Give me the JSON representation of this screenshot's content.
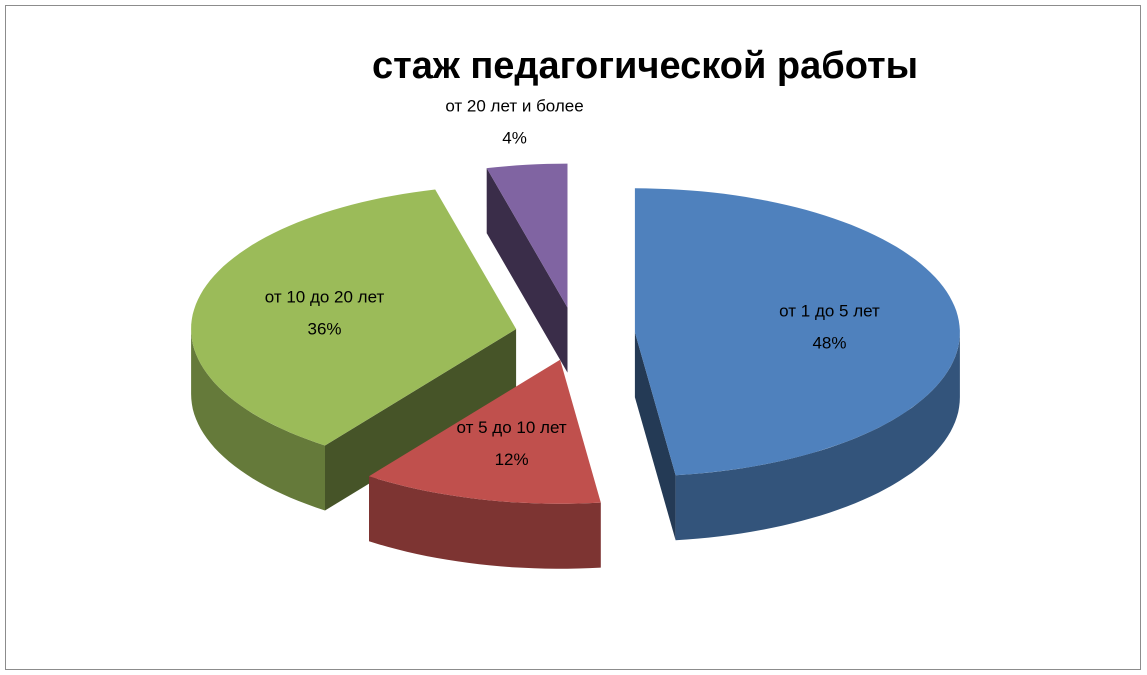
{
  "chart_data": {
    "type": "pie3d",
    "title": "стаж педагогической работы",
    "categories": [
      "от 1 до 5 лет",
      "от 5 до 10 лет",
      "от 10 до 20 лет",
      "от 20 лет и более"
    ],
    "values": [
      48,
      12,
      36,
      4
    ],
    "value_labels": [
      "48%",
      "12%",
      "36%",
      "4%"
    ],
    "colors": [
      "#4f81bd",
      "#c0504d",
      "#9bbb59",
      "#8064a2"
    ],
    "exploded": true
  }
}
